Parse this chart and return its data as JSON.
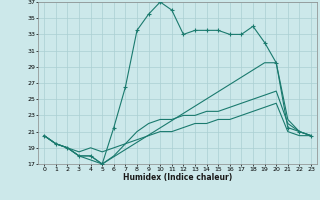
{
  "xlabel": "Humidex (Indice chaleur)",
  "background_color": "#cce8ea",
  "grid_color": "#aacfd2",
  "line_color": "#1a7a6e",
  "xlim": [
    -0.5,
    23.5
  ],
  "ylim": [
    17,
    37
  ],
  "yticks": [
    17,
    19,
    21,
    23,
    25,
    27,
    29,
    31,
    33,
    35,
    37
  ],
  "xticks": [
    0,
    1,
    2,
    3,
    4,
    5,
    6,
    7,
    8,
    9,
    10,
    11,
    12,
    13,
    14,
    15,
    16,
    17,
    18,
    19,
    20,
    21,
    22,
    23
  ],
  "line1_x": [
    0,
    1,
    2,
    3,
    4,
    5,
    6,
    7,
    8,
    9,
    10,
    11,
    12,
    13,
    14,
    15,
    16,
    17,
    18,
    19,
    20,
    21,
    22,
    23
  ],
  "line1_y": [
    20.5,
    19.5,
    19,
    18,
    18,
    17,
    21.5,
    26.5,
    33.5,
    35.5,
    37,
    36,
    33,
    33.5,
    33.5,
    33.5,
    33,
    33,
    34,
    32,
    29.5,
    21.5,
    21,
    20.5
  ],
  "line2_x": [
    0,
    1,
    2,
    3,
    4,
    5,
    6,
    7,
    8,
    9,
    10,
    11,
    12,
    13,
    14,
    15,
    16,
    17,
    18,
    19,
    20,
    21,
    22,
    23
  ],
  "line2_y": [
    20.5,
    19.5,
    19,
    18,
    17.5,
    17,
    18,
    19.5,
    21,
    22,
    22.5,
    22.5,
    23,
    23,
    23.5,
    23.5,
    24,
    24.5,
    25,
    25.5,
    26,
    22,
    21,
    20.5
  ],
  "line3_x": [
    0,
    1,
    2,
    3,
    4,
    5,
    19,
    20,
    21,
    22,
    23
  ],
  "line3_y": [
    20.5,
    19.5,
    19,
    18,
    18,
    17,
    29.5,
    29.5,
    22.5,
    21,
    20.5
  ],
  "line4_x": [
    0,
    1,
    2,
    3,
    4,
    5,
    6,
    7,
    8,
    9,
    10,
    11,
    12,
    13,
    14,
    15,
    16,
    17,
    18,
    19,
    20,
    21,
    22,
    23
  ],
  "line4_y": [
    20.5,
    19.5,
    19,
    18.5,
    19,
    18.5,
    19,
    19.5,
    20,
    20.5,
    21,
    21,
    21.5,
    22,
    22,
    22.5,
    22.5,
    23,
    23.5,
    24,
    24.5,
    21,
    20.5,
    20.5
  ]
}
